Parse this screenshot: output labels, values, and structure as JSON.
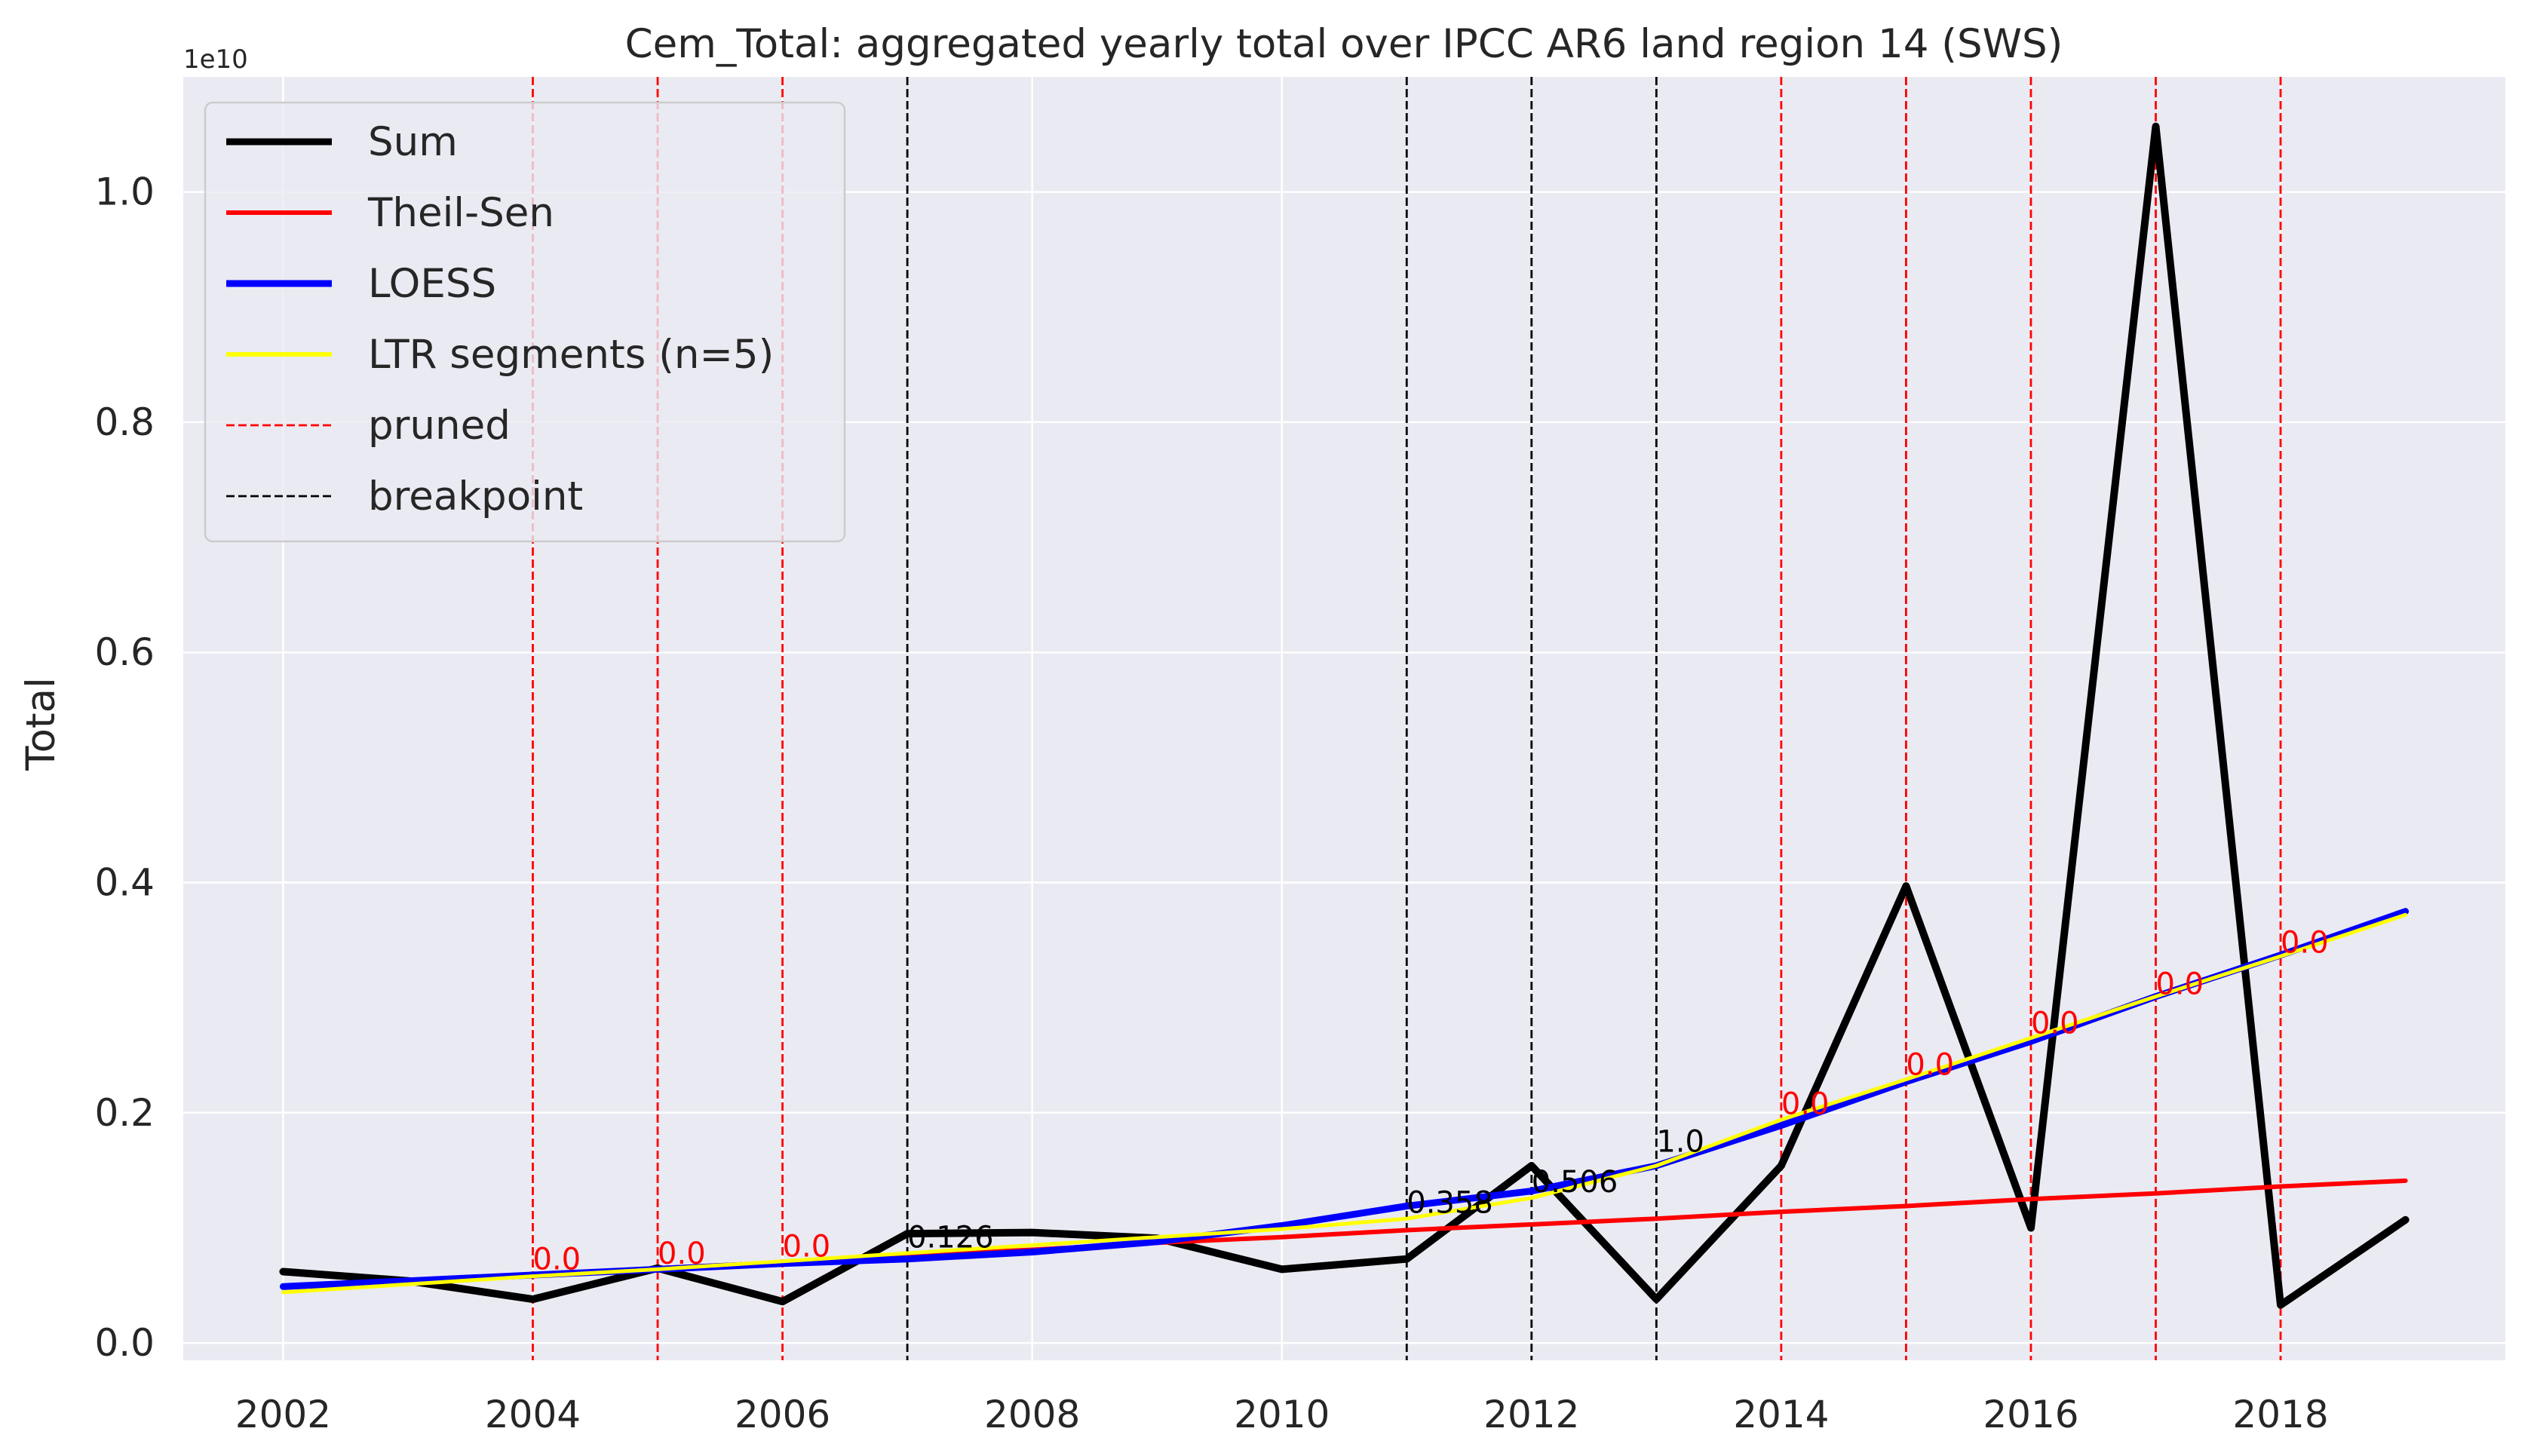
{
  "chart_data": {
    "type": "line",
    "title": "Cem_Total: aggregated yearly total over IPCC AR6 land region 14 (SWS)",
    "xlabel": "",
    "ylabel": "Total",
    "y_offset_label": "1e10",
    "xlim": [
      2001.2,
      2019.8
    ],
    "ylim": [
      -0.015,
      1.1
    ],
    "x_ticks": [
      2002,
      2004,
      2006,
      2008,
      2010,
      2012,
      2014,
      2016,
      2018
    ],
    "y_ticks": [
      0.0,
      0.2,
      0.4,
      0.6,
      0.8,
      1.0
    ],
    "y_tick_labels": [
      "0.0",
      "0.2",
      "0.4",
      "0.6",
      "0.8",
      "1.0"
    ],
    "grid": true,
    "legend_position": "top-left",
    "x": [
      2002,
      2003,
      2004,
      2005,
      2006,
      2007,
      2008,
      2009,
      2010,
      2011,
      2012,
      2013,
      2014,
      2015,
      2016,
      2017,
      2018,
      2019
    ],
    "series": [
      {
        "name": "Sum",
        "color": "#000000",
        "values": [
          0.062,
          0.054,
          0.038,
          0.065,
          0.036,
          0.095,
          0.096,
          0.091,
          0.064,
          0.073,
          0.154,
          0.038,
          0.154,
          0.397,
          0.1,
          1.057,
          0.033,
          0.107
        ]
      },
      {
        "name": "Theil-Sen",
        "color": "#ff0000",
        "values": [
          0.048,
          0.054,
          0.059,
          0.065,
          0.07,
          0.076,
          0.081,
          0.087,
          0.092,
          0.098,
          0.103,
          0.108,
          0.114,
          0.119,
          0.125,
          0.13,
          0.136,
          0.141
        ]
      },
      {
        "name": "LOESS",
        "color": "#0000ff",
        "values": [
          0.049,
          0.054,
          0.059,
          0.064,
          0.069,
          0.073,
          0.079,
          0.088,
          0.102,
          0.119,
          0.132,
          0.154,
          0.189,
          0.227,
          0.262,
          0.301,
          0.337,
          0.375
        ]
      },
      {
        "name": "LTR segments (n=5)",
        "color": "#ffff00",
        "values": [
          0.044,
          0.051,
          0.058,
          0.064,
          0.071,
          0.078,
          0.085,
          0.092,
          0.099,
          0.108,
          0.126,
          0.154,
          0.194,
          0.229,
          0.265,
          0.301,
          0.336,
          0.372
        ]
      }
    ],
    "legend_entries": [
      {
        "label": "Sum",
        "color": "#000000",
        "style": "solid-thick"
      },
      {
        "label": "Theil-Sen",
        "color": "#ff0000",
        "style": "solid"
      },
      {
        "label": "LOESS",
        "color": "#0000ff",
        "style": "solid-thick"
      },
      {
        "label": "LTR segments (n=5)",
        "color": "#ffff00",
        "style": "solid"
      },
      {
        "label": "pruned",
        "color": "#ff0000",
        "style": "dashed"
      },
      {
        "label": "breakpoint",
        "color": "#000000",
        "style": "dashed"
      }
    ],
    "pruned_lines": [
      {
        "x": 2004,
        "label": "0.0",
        "label_y": 0.064
      },
      {
        "x": 2005,
        "label": "0.0",
        "label_y": 0.069
      },
      {
        "x": 2006,
        "label": "0.0",
        "label_y": 0.075
      },
      {
        "x": 2014,
        "label": "0.0",
        "label_y": 0.199
      },
      {
        "x": 2015,
        "label": "0.0",
        "label_y": 0.233
      },
      {
        "x": 2016,
        "label": "0.0",
        "label_y": 0.269
      },
      {
        "x": 2017,
        "label": "0.0",
        "label_y": 0.303
      },
      {
        "x": 2018,
        "label": "0.0",
        "label_y": 0.339
      }
    ],
    "breakpoint_lines": [
      {
        "x": 2007,
        "label": "0.126",
        "label_y": 0.083
      },
      {
        "x": 2011,
        "label": "0.358",
        "label_y": 0.113
      },
      {
        "x": 2012,
        "label": "0.506",
        "label_y": 0.131
      },
      {
        "x": 2013,
        "label": "1.0",
        "label_y": 0.166
      }
    ],
    "colors": {
      "plot_background": "#eaeaf2",
      "grid": "#ffffff",
      "pruned": "#ff0000",
      "breakpoint": "#000000"
    }
  }
}
